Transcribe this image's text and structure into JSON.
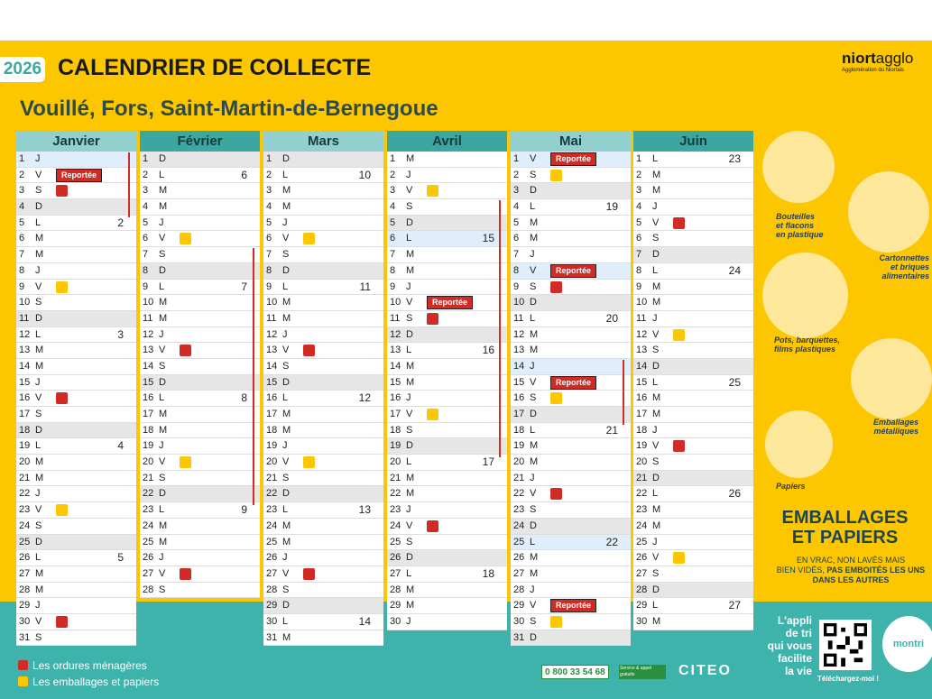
{
  "header": {
    "year": "2026",
    "title": "CALENDRIER DE COLLECTE",
    "subtitle": "Vouillé, Fors, Saint-Martin-de-Bernegoue"
  },
  "logo": {
    "brand_bold": "niort",
    "brand_light": "agglo",
    "tagline": "Agglomération du Niortais"
  },
  "colors": {
    "yellow": "#fcc700",
    "teal": "#3eb3ac",
    "red": "#d12b26",
    "header_teal": "#3aa8a0",
    "header_light": "#92d0d0"
  },
  "reporte_label": "Reportée",
  "months": [
    {
      "name": "Janvier",
      "head": "#92d0d0",
      "days": [
        {
          "d": "1",
          "l": "J",
          "hl": true
        },
        {
          "d": "2",
          "l": "V",
          "rep": true
        },
        {
          "d": "3",
          "l": "S",
          "m": "red"
        },
        {
          "d": "4",
          "l": "D",
          "we": true
        },
        {
          "d": "5",
          "l": "L",
          "wk": "2"
        },
        {
          "d": "6",
          "l": "M"
        },
        {
          "d": "7",
          "l": "M"
        },
        {
          "d": "8",
          "l": "J"
        },
        {
          "d": "9",
          "l": "V",
          "m": "yel"
        },
        {
          "d": "10",
          "l": "S"
        },
        {
          "d": "11",
          "l": "D",
          "we": true
        },
        {
          "d": "12",
          "l": "L",
          "wk": "3"
        },
        {
          "d": "13",
          "l": "M"
        },
        {
          "d": "14",
          "l": "M"
        },
        {
          "d": "15",
          "l": "J"
        },
        {
          "d": "16",
          "l": "V",
          "m": "red"
        },
        {
          "d": "17",
          "l": "S"
        },
        {
          "d": "18",
          "l": "D",
          "we": true
        },
        {
          "d": "19",
          "l": "L",
          "wk": "4"
        },
        {
          "d": "20",
          "l": "M"
        },
        {
          "d": "21",
          "l": "M"
        },
        {
          "d": "22",
          "l": "J"
        },
        {
          "d": "23",
          "l": "V",
          "m": "yel"
        },
        {
          "d": "24",
          "l": "S"
        },
        {
          "d": "25",
          "l": "D",
          "we": true
        },
        {
          "d": "26",
          "l": "L",
          "wk": "5"
        },
        {
          "d": "27",
          "l": "M"
        },
        {
          "d": "28",
          "l": "M"
        },
        {
          "d": "29",
          "l": "J"
        },
        {
          "d": "30",
          "l": "V",
          "m": "red"
        },
        {
          "d": "31",
          "l": "S"
        }
      ]
    },
    {
      "name": "Février",
      "head": "#3aa8a0",
      "days": [
        {
          "d": "1",
          "l": "D",
          "we": true
        },
        {
          "d": "2",
          "l": "L",
          "wk": "6"
        },
        {
          "d": "3",
          "l": "M"
        },
        {
          "d": "4",
          "l": "M"
        },
        {
          "d": "5",
          "l": "J"
        },
        {
          "d": "6",
          "l": "V",
          "m": "yel"
        },
        {
          "d": "7",
          "l": "S"
        },
        {
          "d": "8",
          "l": "D",
          "we": true
        },
        {
          "d": "9",
          "l": "L",
          "wk": "7"
        },
        {
          "d": "10",
          "l": "M"
        },
        {
          "d": "11",
          "l": "M"
        },
        {
          "d": "12",
          "l": "J"
        },
        {
          "d": "13",
          "l": "V",
          "m": "red"
        },
        {
          "d": "14",
          "l": "S"
        },
        {
          "d": "15",
          "l": "D",
          "we": true
        },
        {
          "d": "16",
          "l": "L",
          "wk": "8"
        },
        {
          "d": "17",
          "l": "M"
        },
        {
          "d": "18",
          "l": "M"
        },
        {
          "d": "19",
          "l": "J"
        },
        {
          "d": "20",
          "l": "V",
          "m": "yel"
        },
        {
          "d": "21",
          "l": "S"
        },
        {
          "d": "22",
          "l": "D",
          "we": true
        },
        {
          "d": "23",
          "l": "L",
          "wk": "9"
        },
        {
          "d": "24",
          "l": "M"
        },
        {
          "d": "25",
          "l": "M"
        },
        {
          "d": "26",
          "l": "J"
        },
        {
          "d": "27",
          "l": "V",
          "m": "red"
        },
        {
          "d": "28",
          "l": "S"
        }
      ]
    },
    {
      "name": "Mars",
      "head": "#92d0d0",
      "days": [
        {
          "d": "1",
          "l": "D",
          "we": true
        },
        {
          "d": "2",
          "l": "L",
          "wk": "10"
        },
        {
          "d": "3",
          "l": "M"
        },
        {
          "d": "4",
          "l": "M"
        },
        {
          "d": "5",
          "l": "J"
        },
        {
          "d": "6",
          "l": "V",
          "m": "yel"
        },
        {
          "d": "7",
          "l": "S"
        },
        {
          "d": "8",
          "l": "D",
          "we": true
        },
        {
          "d": "9",
          "l": "L",
          "wk": "11"
        },
        {
          "d": "10",
          "l": "M"
        },
        {
          "d": "11",
          "l": "M"
        },
        {
          "d": "12",
          "l": "J"
        },
        {
          "d": "13",
          "l": "V",
          "m": "red"
        },
        {
          "d": "14",
          "l": "S"
        },
        {
          "d": "15",
          "l": "D",
          "we": true
        },
        {
          "d": "16",
          "l": "L",
          "wk": "12"
        },
        {
          "d": "17",
          "l": "M"
        },
        {
          "d": "18",
          "l": "M"
        },
        {
          "d": "19",
          "l": "J"
        },
        {
          "d": "20",
          "l": "V",
          "m": "yel"
        },
        {
          "d": "21",
          "l": "S"
        },
        {
          "d": "22",
          "l": "D",
          "we": true
        },
        {
          "d": "23",
          "l": "L",
          "wk": "13"
        },
        {
          "d": "24",
          "l": "M"
        },
        {
          "d": "25",
          "l": "M"
        },
        {
          "d": "26",
          "l": "J"
        },
        {
          "d": "27",
          "l": "V",
          "m": "red"
        },
        {
          "d": "28",
          "l": "S"
        },
        {
          "d": "29",
          "l": "D",
          "we": true
        },
        {
          "d": "30",
          "l": "L",
          "wk": "14"
        },
        {
          "d": "31",
          "l": "M"
        }
      ]
    },
    {
      "name": "Avril",
      "head": "#3aa8a0",
      "days": [
        {
          "d": "1",
          "l": "M"
        },
        {
          "d": "2",
          "l": "J"
        },
        {
          "d": "3",
          "l": "V",
          "m": "yel"
        },
        {
          "d": "4",
          "l": "S"
        },
        {
          "d": "5",
          "l": "D",
          "we": true
        },
        {
          "d": "6",
          "l": "L",
          "wk": "15",
          "hl": true
        },
        {
          "d": "7",
          "l": "M"
        },
        {
          "d": "8",
          "l": "M"
        },
        {
          "d": "9",
          "l": "J"
        },
        {
          "d": "10",
          "l": "V",
          "rep": true
        },
        {
          "d": "11",
          "l": "S",
          "m": "red"
        },
        {
          "d": "12",
          "l": "D",
          "we": true
        },
        {
          "d": "13",
          "l": "L",
          "wk": "16"
        },
        {
          "d": "14",
          "l": "M"
        },
        {
          "d": "15",
          "l": "M"
        },
        {
          "d": "16",
          "l": "J"
        },
        {
          "d": "17",
          "l": "V",
          "m": "yel"
        },
        {
          "d": "18",
          "l": "S"
        },
        {
          "d": "19",
          "l": "D",
          "we": true
        },
        {
          "d": "20",
          "l": "L",
          "wk": "17"
        },
        {
          "d": "21",
          "l": "M"
        },
        {
          "d": "22",
          "l": "M"
        },
        {
          "d": "23",
          "l": "J"
        },
        {
          "d": "24",
          "l": "V",
          "m": "red"
        },
        {
          "d": "25",
          "l": "S"
        },
        {
          "d": "26",
          "l": "D",
          "we": true
        },
        {
          "d": "27",
          "l": "L",
          "wk": "18"
        },
        {
          "d": "28",
          "l": "M"
        },
        {
          "d": "29",
          "l": "M"
        },
        {
          "d": "30",
          "l": "J"
        }
      ]
    },
    {
      "name": "Mai",
      "head": "#92d0d0",
      "days": [
        {
          "d": "1",
          "l": "V",
          "hl": true,
          "rep": true
        },
        {
          "d": "2",
          "l": "S",
          "m": "yel"
        },
        {
          "d": "3",
          "l": "D",
          "we": true
        },
        {
          "d": "4",
          "l": "L",
          "wk": "19"
        },
        {
          "d": "5",
          "l": "M"
        },
        {
          "d": "6",
          "l": "M"
        },
        {
          "d": "7",
          "l": "J"
        },
        {
          "d": "8",
          "l": "V",
          "hl": true,
          "rep": true
        },
        {
          "d": "9",
          "l": "S",
          "m": "red"
        },
        {
          "d": "10",
          "l": "D",
          "we": true
        },
        {
          "d": "11",
          "l": "L",
          "wk": "20"
        },
        {
          "d": "12",
          "l": "M"
        },
        {
          "d": "13",
          "l": "M"
        },
        {
          "d": "14",
          "l": "J",
          "hl": true
        },
        {
          "d": "15",
          "l": "V",
          "rep": true
        },
        {
          "d": "16",
          "l": "S",
          "m": "yel"
        },
        {
          "d": "17",
          "l": "D",
          "we": true
        },
        {
          "d": "18",
          "l": "L",
          "wk": "21"
        },
        {
          "d": "19",
          "l": "M"
        },
        {
          "d": "20",
          "l": "M"
        },
        {
          "d": "21",
          "l": "J"
        },
        {
          "d": "22",
          "l": "V",
          "m": "red"
        },
        {
          "d": "23",
          "l": "S"
        },
        {
          "d": "24",
          "l": "D",
          "we": true
        },
        {
          "d": "25",
          "l": "L",
          "wk": "22",
          "hl": true
        },
        {
          "d": "26",
          "l": "M"
        },
        {
          "d": "27",
          "l": "M"
        },
        {
          "d": "28",
          "l": "J"
        },
        {
          "d": "29",
          "l": "V",
          "rep": true
        },
        {
          "d": "30",
          "l": "S",
          "m": "yel"
        },
        {
          "d": "31",
          "l": "D",
          "we": true
        }
      ]
    },
    {
      "name": "Juin",
      "head": "#3aa8a0",
      "days": [
        {
          "d": "1",
          "l": "L",
          "wk": "23"
        },
        {
          "d": "2",
          "l": "M"
        },
        {
          "d": "3",
          "l": "M"
        },
        {
          "d": "4",
          "l": "J"
        },
        {
          "d": "5",
          "l": "V",
          "m": "red"
        },
        {
          "d": "6",
          "l": "S"
        },
        {
          "d": "7",
          "l": "D",
          "we": true
        },
        {
          "d": "8",
          "l": "L",
          "wk": "24"
        },
        {
          "d": "9",
          "l": "M"
        },
        {
          "d": "10",
          "l": "M"
        },
        {
          "d": "11",
          "l": "J"
        },
        {
          "d": "12",
          "l": "V",
          "m": "yel"
        },
        {
          "d": "13",
          "l": "S"
        },
        {
          "d": "14",
          "l": "D",
          "we": true
        },
        {
          "d": "15",
          "l": "L",
          "wk": "25"
        },
        {
          "d": "16",
          "l": "M"
        },
        {
          "d": "17",
          "l": "M"
        },
        {
          "d": "18",
          "l": "J"
        },
        {
          "d": "19",
          "l": "V",
          "m": "red"
        },
        {
          "d": "20",
          "l": "S"
        },
        {
          "d": "21",
          "l": "D",
          "we": true
        },
        {
          "d": "22",
          "l": "L",
          "wk": "26"
        },
        {
          "d": "23",
          "l": "M"
        },
        {
          "d": "24",
          "l": "M"
        },
        {
          "d": "25",
          "l": "J"
        },
        {
          "d": "26",
          "l": "V",
          "m": "yel"
        },
        {
          "d": "27",
          "l": "S"
        },
        {
          "d": "28",
          "l": "D",
          "we": true
        },
        {
          "d": "29",
          "l": "L",
          "wk": "27"
        },
        {
          "d": "30",
          "l": "M"
        }
      ]
    }
  ],
  "categories": {
    "bottles": "Bouteilles\net flacons\nen plastique",
    "cartons": "Cartonnettes\net briques\nalimentaires",
    "pots": "Pots, barquettes,\nfilms plastiques",
    "metal": "Emballages\nmétalliques",
    "papers": "Papiers"
  },
  "emballages": {
    "title1": "EMBALLAGES",
    "title2": "ET PAPIERS",
    "sub1": "EN VRAC, NON LAVÉS MAIS",
    "sub2a": "BIEN VIDÉS, ",
    "sub2b": "PAS EMBOITÉS LES UNS",
    "sub3": "DANS LES AUTRES"
  },
  "legend": {
    "red": "Les ordures ménagères",
    "yellow": "Les emballages et papiers"
  },
  "footer": {
    "phone": "0 800 33 54 68",
    "phone_badge": "Service & appel gratuits",
    "citeo": "CITEO",
    "appli": "L'appli\nde tri\nqui vous\nfacilite\nla vie",
    "download": "Téléchargez-moi !",
    "montri": "montri"
  }
}
